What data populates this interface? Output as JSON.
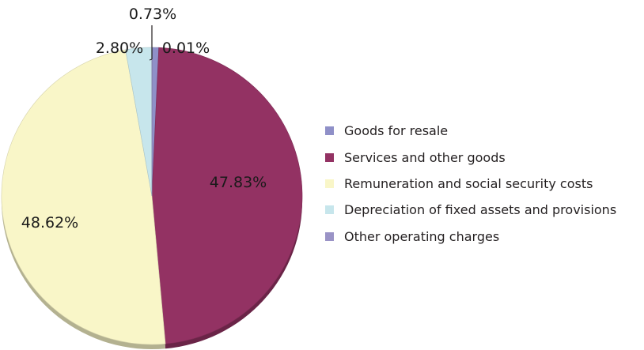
{
  "chart_data": {
    "type": "pie",
    "title": "",
    "slices": [
      {
        "name": "Goods for resale",
        "value": 0.73,
        "label": "0.73%",
        "color": "#8f90c8"
      },
      {
        "name": "Services and other goods",
        "value": 47.83,
        "label": "47.83%",
        "color": "#933263"
      },
      {
        "name": "Remuneration and social security costs",
        "value": 48.62,
        "label": "48.62%",
        "color": "#f9f6c8"
      },
      {
        "name": "Depreciation of fixed assets and provisions",
        "value": 2.8,
        "label": "2.80%",
        "color": "#c7e6ec"
      },
      {
        "name": "Other operating charges",
        "value": 0.01,
        "label": "0.01%",
        "color": "#9a93c6"
      }
    ],
    "legend_position": "right",
    "style": "3d-tilted"
  },
  "legend": {
    "items": [
      {
        "label": "Goods for resale",
        "color": "#8f90c8"
      },
      {
        "label": "Services and other goods",
        "color": "#933263"
      },
      {
        "label": "Remuneration and social security costs",
        "color": "#f9f6c8"
      },
      {
        "label": "Depreciation of fixed assets and provisions",
        "color": "#c7e6ec"
      },
      {
        "label": "Other operating charges",
        "color": "#9a93c6"
      }
    ]
  }
}
